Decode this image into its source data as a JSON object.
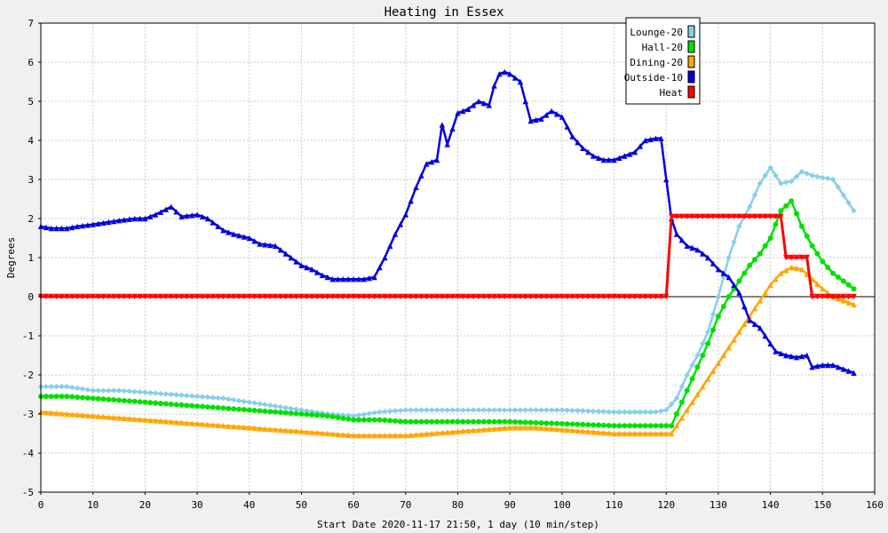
{
  "chart_data": {
    "type": "line",
    "title": "Heating in Essex",
    "xlabel": "Start Date 2020-11-17 21:50, 1 day (10 min/step)",
    "ylabel": "Degrees",
    "xlim": [
      0,
      160
    ],
    "ylim": [
      -5,
      7
    ],
    "xticks": [
      0,
      10,
      20,
      30,
      40,
      50,
      60,
      70,
      80,
      90,
      100,
      110,
      120,
      130,
      140,
      150,
      160
    ],
    "yticks": [
      -5,
      -4,
      -3,
      -2,
      -1,
      0,
      1,
      2,
      3,
      4,
      5,
      6,
      7
    ],
    "grid": true,
    "legend_position": "top-right",
    "series": [
      {
        "name": "Lounge-20",
        "color": "#87ceeb",
        "marker": "diamond",
        "points": [
          [
            0,
            -2.3
          ],
          [
            5,
            -2.3
          ],
          [
            10,
            -2.4
          ],
          [
            15,
            -2.4
          ],
          [
            20,
            -2.45
          ],
          [
            25,
            -2.5
          ],
          [
            30,
            -2.55
          ],
          [
            35,
            -2.6
          ],
          [
            40,
            -2.7
          ],
          [
            45,
            -2.8
          ],
          [
            50,
            -2.9
          ],
          [
            55,
            -3.0
          ],
          [
            60,
            -3.05
          ],
          [
            65,
            -2.95
          ],
          [
            70,
            -2.9
          ],
          [
            80,
            -2.9
          ],
          [
            90,
            -2.9
          ],
          [
            100,
            -2.9
          ],
          [
            110,
            -2.95
          ],
          [
            118,
            -2.95
          ],
          [
            120,
            -2.9
          ],
          [
            122,
            -2.6
          ],
          [
            124,
            -2.0
          ],
          [
            126,
            -1.5
          ],
          [
            128,
            -0.9
          ],
          [
            130,
            0.0
          ],
          [
            132,
            1.0
          ],
          [
            134,
            1.8
          ],
          [
            136,
            2.3
          ],
          [
            138,
            2.9
          ],
          [
            140,
            3.3
          ],
          [
            142,
            2.9
          ],
          [
            144,
            2.95
          ],
          [
            146,
            3.2
          ],
          [
            148,
            3.1
          ],
          [
            150,
            3.05
          ],
          [
            152,
            3.0
          ],
          [
            154,
            2.6
          ],
          [
            156,
            2.2
          ]
        ]
      },
      {
        "name": "Hall-20",
        "color": "#00e000",
        "marker": "circle",
        "points": [
          [
            0,
            -2.55
          ],
          [
            5,
            -2.55
          ],
          [
            10,
            -2.6
          ],
          [
            15,
            -2.65
          ],
          [
            20,
            -2.7
          ],
          [
            25,
            -2.75
          ],
          [
            30,
            -2.8
          ],
          [
            35,
            -2.85
          ],
          [
            40,
            -2.9
          ],
          [
            45,
            -2.95
          ],
          [
            50,
            -3.0
          ],
          [
            55,
            -3.05
          ],
          [
            60,
            -3.15
          ],
          [
            65,
            -3.15
          ],
          [
            70,
            -3.2
          ],
          [
            80,
            -3.2
          ],
          [
            90,
            -3.2
          ],
          [
            100,
            -3.25
          ],
          [
            110,
            -3.3
          ],
          [
            120,
            -3.3
          ],
          [
            121,
            -3.3
          ],
          [
            122,
            -3.0
          ],
          [
            124,
            -2.4
          ],
          [
            126,
            -1.8
          ],
          [
            128,
            -1.2
          ],
          [
            130,
            -0.5
          ],
          [
            132,
            0.0
          ],
          [
            134,
            0.4
          ],
          [
            136,
            0.8
          ],
          [
            138,
            1.1
          ],
          [
            140,
            1.5
          ],
          [
            142,
            2.2
          ],
          [
            144,
            2.45
          ],
          [
            146,
            1.8
          ],
          [
            148,
            1.3
          ],
          [
            150,
            0.9
          ],
          [
            152,
            0.6
          ],
          [
            154,
            0.4
          ],
          [
            156,
            0.2
          ]
        ]
      },
      {
        "name": "Dining-20",
        "color": "#ffa500",
        "marker": "triangle",
        "points": [
          [
            0,
            -2.95
          ],
          [
            5,
            -3.0
          ],
          [
            10,
            -3.05
          ],
          [
            15,
            -3.1
          ],
          [
            20,
            -3.15
          ],
          [
            25,
            -3.2
          ],
          [
            30,
            -3.25
          ],
          [
            35,
            -3.3
          ],
          [
            40,
            -3.35
          ],
          [
            45,
            -3.4
          ],
          [
            50,
            -3.45
          ],
          [
            55,
            -3.5
          ],
          [
            60,
            -3.55
          ],
          [
            65,
            -3.55
          ],
          [
            70,
            -3.55
          ],
          [
            75,
            -3.5
          ],
          [
            80,
            -3.45
          ],
          [
            85,
            -3.4
          ],
          [
            90,
            -3.35
          ],
          [
            95,
            -3.35
          ],
          [
            100,
            -3.4
          ],
          [
            105,
            -3.45
          ],
          [
            110,
            -3.5
          ],
          [
            115,
            -3.5
          ],
          [
            120,
            -3.5
          ],
          [
            121,
            -3.5
          ],
          [
            122,
            -3.3
          ],
          [
            124,
            -2.9
          ],
          [
            126,
            -2.5
          ],
          [
            128,
            -2.1
          ],
          [
            130,
            -1.7
          ],
          [
            132,
            -1.3
          ],
          [
            134,
            -0.9
          ],
          [
            136,
            -0.5
          ],
          [
            138,
            -0.1
          ],
          [
            140,
            0.3
          ],
          [
            142,
            0.6
          ],
          [
            144,
            0.75
          ],
          [
            146,
            0.7
          ],
          [
            148,
            0.45
          ],
          [
            150,
            0.2
          ],
          [
            152,
            0.0
          ],
          [
            154,
            -0.1
          ],
          [
            156,
            -0.2
          ]
        ]
      },
      {
        "name": "Outside-10",
        "color": "#0000dd",
        "marker": "triangle",
        "points": [
          [
            0,
            1.8
          ],
          [
            2,
            1.75
          ],
          [
            5,
            1.75
          ],
          [
            7,
            1.8
          ],
          [
            10,
            1.85
          ],
          [
            15,
            1.95
          ],
          [
            18,
            2.0
          ],
          [
            20,
            2.0
          ],
          [
            22,
            2.1
          ],
          [
            25,
            2.3
          ],
          [
            27,
            2.05
          ],
          [
            30,
            2.1
          ],
          [
            32,
            2.0
          ],
          [
            35,
            1.7
          ],
          [
            37,
            1.6
          ],
          [
            40,
            1.5
          ],
          [
            42,
            1.35
          ],
          [
            45,
            1.3
          ],
          [
            47,
            1.1
          ],
          [
            50,
            0.8
          ],
          [
            52,
            0.7
          ],
          [
            54,
            0.55
          ],
          [
            56,
            0.45
          ],
          [
            58,
            0.45
          ],
          [
            60,
            0.45
          ],
          [
            62,
            0.45
          ],
          [
            64,
            0.5
          ],
          [
            66,
            1.0
          ],
          [
            68,
            1.6
          ],
          [
            70,
            2.1
          ],
          [
            72,
            2.8
          ],
          [
            74,
            3.4
          ],
          [
            76,
            3.5
          ],
          [
            77,
            4.4
          ],
          [
            78,
            3.9
          ],
          [
            80,
            4.7
          ],
          [
            82,
            4.8
          ],
          [
            84,
            5.0
          ],
          [
            86,
            4.9
          ],
          [
            87,
            5.4
          ],
          [
            88,
            5.7
          ],
          [
            89,
            5.75
          ],
          [
            90,
            5.7
          ],
          [
            92,
            5.5
          ],
          [
            94,
            4.5
          ],
          [
            96,
            4.55
          ],
          [
            98,
            4.75
          ],
          [
            100,
            4.6
          ],
          [
            102,
            4.1
          ],
          [
            104,
            3.8
          ],
          [
            106,
            3.6
          ],
          [
            108,
            3.5
          ],
          [
            110,
            3.5
          ],
          [
            112,
            3.6
          ],
          [
            114,
            3.7
          ],
          [
            116,
            4.0
          ],
          [
            118,
            4.05
          ],
          [
            119,
            4.05
          ],
          [
            120,
            3.0
          ],
          [
            121,
            2.0
          ],
          [
            122,
            1.6
          ],
          [
            124,
            1.3
          ],
          [
            126,
            1.2
          ],
          [
            128,
            1.0
          ],
          [
            130,
            0.7
          ],
          [
            132,
            0.5
          ],
          [
            134,
            0.1
          ],
          [
            136,
            -0.6
          ],
          [
            138,
            -0.8
          ],
          [
            140,
            -1.2
          ],
          [
            141,
            -1.4
          ],
          [
            143,
            -1.5
          ],
          [
            145,
            -1.55
          ],
          [
            147,
            -1.5
          ],
          [
            148,
            -1.8
          ],
          [
            150,
            -1.75
          ],
          [
            152,
            -1.75
          ],
          [
            154,
            -1.85
          ],
          [
            156,
            -1.95
          ]
        ]
      },
      {
        "name": "Heat",
        "color": "#ff0000",
        "marker": "triangle-down",
        "points": [
          [
            0,
            0
          ],
          [
            120,
            0
          ],
          [
            121,
            2.05
          ],
          [
            142,
            2.05
          ],
          [
            143,
            1.0
          ],
          [
            147,
            1.0
          ],
          [
            148,
            0
          ],
          [
            156,
            0
          ]
        ]
      }
    ]
  }
}
